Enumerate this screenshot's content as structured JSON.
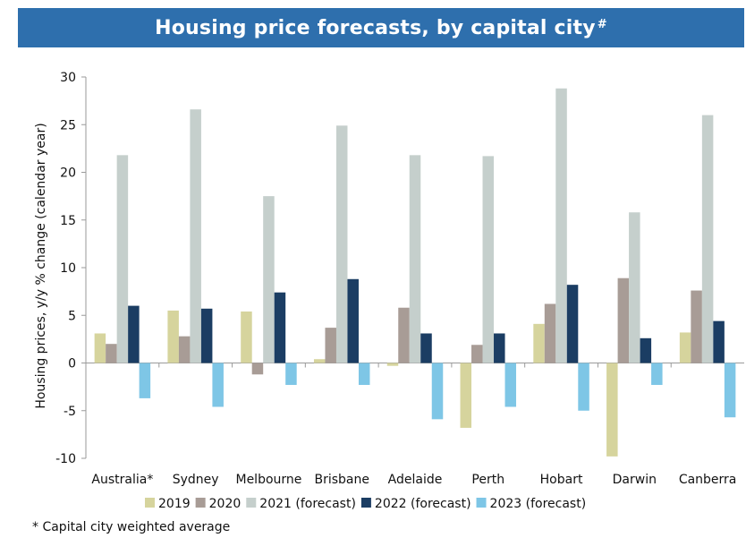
{
  "title": "Housing price forecasts, by capital city",
  "title_mark": "#",
  "footnote": "* Capital city weighted average",
  "chart_data": {
    "type": "bar",
    "title": "Housing price forecasts, by capital city#",
    "xlabel": "",
    "ylabel": "Housing prices, y/y % change (calendar year)",
    "ylim": [
      -10,
      30
    ],
    "yticks": [
      -10,
      -5,
      0,
      5,
      10,
      15,
      20,
      25,
      30
    ],
    "grid": false,
    "legend_position": "bottom",
    "categories": [
      "Australia*",
      "Sydney",
      "Melbourne",
      "Brisbane",
      "Adelaide",
      "Perth",
      "Hobart",
      "Darwin",
      "Canberra"
    ],
    "series": [
      {
        "name": "2019",
        "color": "#d6d49d",
        "values": [
          3.1,
          5.5,
          5.4,
          0.4,
          -0.3,
          -6.8,
          4.1,
          -9.8,
          3.2
        ]
      },
      {
        "name": "2020",
        "color": "#a89c96",
        "values": [
          2.0,
          2.8,
          -1.2,
          3.7,
          5.8,
          1.9,
          6.2,
          8.9,
          7.6
        ]
      },
      {
        "name": "2021 (forecast)",
        "color": "#c5cfcc",
        "values": [
          21.8,
          26.6,
          17.5,
          24.9,
          21.8,
          21.7,
          28.8,
          15.8,
          26.0
        ]
      },
      {
        "name": "2022 (forecast)",
        "color": "#1b3d63",
        "values": [
          6.0,
          5.7,
          7.4,
          8.8,
          3.1,
          3.1,
          8.2,
          2.6,
          4.4
        ]
      },
      {
        "name": "2023 (forecast)",
        "color": "#7ec6e6",
        "values": [
          -3.7,
          -4.6,
          -2.3,
          -2.3,
          -5.9,
          -4.6,
          -5.0,
          -2.3,
          -5.7
        ]
      }
    ]
  }
}
